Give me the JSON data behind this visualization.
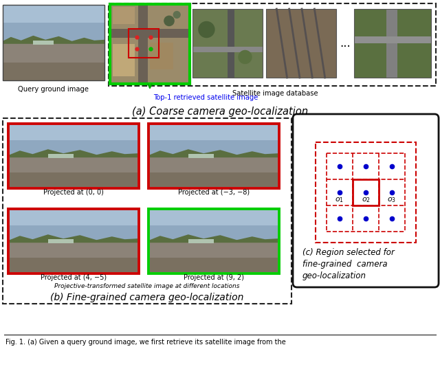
{
  "fig_width": 6.4,
  "fig_height": 5.53,
  "dpi": 100,
  "background_color": "#ffffff",
  "section_a": {
    "label": "(a) Coarse camera geo-localization",
    "query_label": "Query ground image",
    "db_label": "Satellite image database",
    "top1_label": "Top-1 retrieved satellite image",
    "top1_color": "#0000ee",
    "db_box_color": "#111111",
    "top1_box_color": "#00cc00",
    "sub_box_color": "#cc0000"
  },
  "section_b": {
    "label": "(b) Fine-grained camera geo-localization",
    "sub_label": "Projective-transformed satellite image at different locations",
    "panel_titles": [
      "Projected at (0, 0)",
      "Projected at (−3, −8)",
      "Projected at (4, −5)",
      "Projected at (9, 2)"
    ],
    "panel_colors": [
      "#cc0000",
      "#cc0000",
      "#cc0000",
      "#00cc00"
    ],
    "outer_box_color": "#111111"
  },
  "section_c": {
    "label_line1": "(c) Region selected for",
    "label_line2": "fine-grained  camera",
    "label_line3": "geo-localization",
    "outer_box_color": "#111111",
    "solid_box_color": "#cc0000",
    "dashed_box_color": "#cc0000",
    "dot_color": "#0000cc"
  },
  "bottom_caption": "Fig. 1. (a) Given a query ground image, we first retrieve its satellite image from the"
}
